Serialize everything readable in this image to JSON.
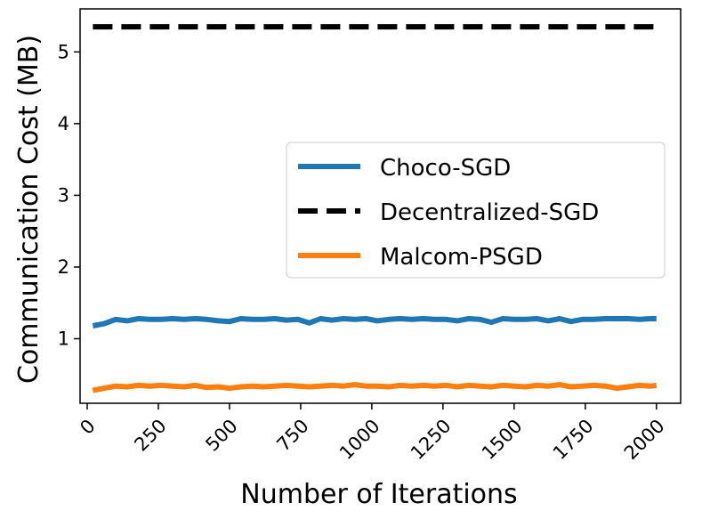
{
  "chart_data": {
    "type": "line",
    "title": "",
    "xlabel": "Number of Iterations",
    "ylabel": "Communication Cost (MB)",
    "xlim": [
      -25,
      2085
    ],
    "ylim": [
      0.1,
      5.6
    ],
    "x_ticks": [
      "0",
      "250",
      "500",
      "750",
      "1000",
      "1250",
      "1500",
      "1750",
      "2000"
    ],
    "x_tick_values": [
      0,
      250,
      500,
      750,
      1000,
      1250,
      1500,
      1750,
      2000
    ],
    "y_ticks": [
      "1",
      "2",
      "3",
      "4",
      "5"
    ],
    "y_tick_values": [
      1,
      2,
      3,
      4,
      5
    ],
    "grid": false,
    "legend_position": "center-right",
    "x": [
      20,
      60,
      100,
      140,
      180,
      220,
      260,
      300,
      340,
      380,
      420,
      460,
      500,
      540,
      580,
      620,
      660,
      700,
      740,
      780,
      820,
      860,
      900,
      940,
      980,
      1020,
      1060,
      1100,
      1140,
      1180,
      1220,
      1260,
      1300,
      1340,
      1380,
      1420,
      1460,
      1500,
      1540,
      1580,
      1620,
      1660,
      1700,
      1740,
      1780,
      1820,
      1860,
      1900,
      1940,
      1980,
      2000
    ],
    "series": [
      {
        "name": "Choco-SGD",
        "color": "#1f77b4",
        "style": "solid",
        "values": [
          1.18,
          1.21,
          1.27,
          1.25,
          1.28,
          1.27,
          1.27,
          1.28,
          1.27,
          1.28,
          1.27,
          1.25,
          1.24,
          1.28,
          1.27,
          1.27,
          1.28,
          1.26,
          1.27,
          1.22,
          1.28,
          1.26,
          1.28,
          1.27,
          1.28,
          1.25,
          1.27,
          1.28,
          1.27,
          1.28,
          1.27,
          1.27,
          1.25,
          1.28,
          1.27,
          1.23,
          1.28,
          1.27,
          1.27,
          1.28,
          1.25,
          1.28,
          1.24,
          1.27,
          1.27,
          1.28,
          1.28,
          1.28,
          1.27,
          1.28,
          1.28
        ]
      },
      {
        "name": "Decentralized-SGD",
        "color": "#000000",
        "style": "dashed",
        "values": [
          5.35,
          5.35,
          5.35,
          5.35,
          5.35,
          5.35,
          5.35,
          5.35,
          5.35,
          5.35,
          5.35,
          5.35,
          5.35,
          5.35,
          5.35,
          5.35,
          5.35,
          5.35,
          5.35,
          5.35,
          5.35,
          5.35,
          5.35,
          5.35,
          5.35,
          5.35,
          5.35,
          5.35,
          5.35,
          5.35,
          5.35,
          5.35,
          5.35,
          5.35,
          5.35,
          5.35,
          5.35,
          5.35,
          5.35,
          5.35,
          5.35,
          5.35,
          5.35,
          5.35,
          5.35,
          5.35,
          5.35,
          5.35,
          5.35,
          5.35,
          5.35
        ]
      },
      {
        "name": "Malcom-PSGD",
        "color": "#ff7f0e",
        "style": "solid",
        "values": [
          0.28,
          0.31,
          0.34,
          0.33,
          0.35,
          0.34,
          0.35,
          0.34,
          0.33,
          0.35,
          0.32,
          0.33,
          0.31,
          0.33,
          0.34,
          0.33,
          0.34,
          0.35,
          0.34,
          0.33,
          0.34,
          0.35,
          0.34,
          0.36,
          0.34,
          0.34,
          0.33,
          0.35,
          0.34,
          0.35,
          0.34,
          0.35,
          0.33,
          0.35,
          0.34,
          0.33,
          0.35,
          0.34,
          0.33,
          0.35,
          0.34,
          0.36,
          0.33,
          0.34,
          0.35,
          0.34,
          0.31,
          0.33,
          0.35,
          0.34,
          0.35
        ]
      }
    ]
  }
}
